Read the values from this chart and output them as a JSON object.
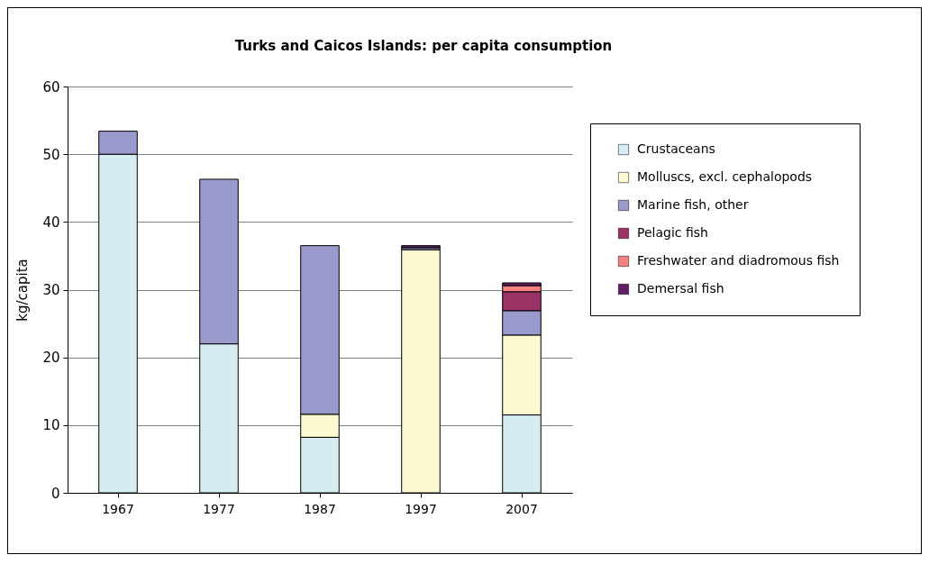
{
  "chart_data": {
    "type": "bar",
    "title": "Turks and Caicos Islands: per capita consumption",
    "ylabel": "kg/capita",
    "categories": [
      "1967",
      "1977",
      "1987",
      "1997",
      "2007"
    ],
    "stacked": true,
    "ylim": [
      0,
      60
    ],
    "yticks": [
      0,
      10,
      20,
      30,
      40,
      50,
      60
    ],
    "grid": "y",
    "legend": "right",
    "series": [
      {
        "name": "Crustaceans",
        "color": "#d4ecf2",
        "values": [
          50,
          22,
          8.2,
          null,
          11.5
        ]
      },
      {
        "name": "Molluscs, excl. cephalopods",
        "color": "#fcf8cf",
        "values": [
          null,
          null,
          3.4,
          35.9,
          11.8
        ]
      },
      {
        "name": "Marine fish, other",
        "color": "#9999cc",
        "values": [
          3.4,
          24.3,
          24.9,
          0.3,
          3.6
        ]
      },
      {
        "name": "Pelagic fish",
        "color": "#993366",
        "values": [
          null,
          null,
          null,
          null,
          2.8
        ]
      },
      {
        "name": "Freshwater and diadromous fish",
        "color": "#f78080",
        "values": [
          null,
          null,
          null,
          null,
          0.9
        ]
      },
      {
        "name": "Demersal fish",
        "color": "#5f1f64",
        "values": [
          null,
          null,
          null,
          0.3,
          0.4
        ]
      }
    ]
  }
}
